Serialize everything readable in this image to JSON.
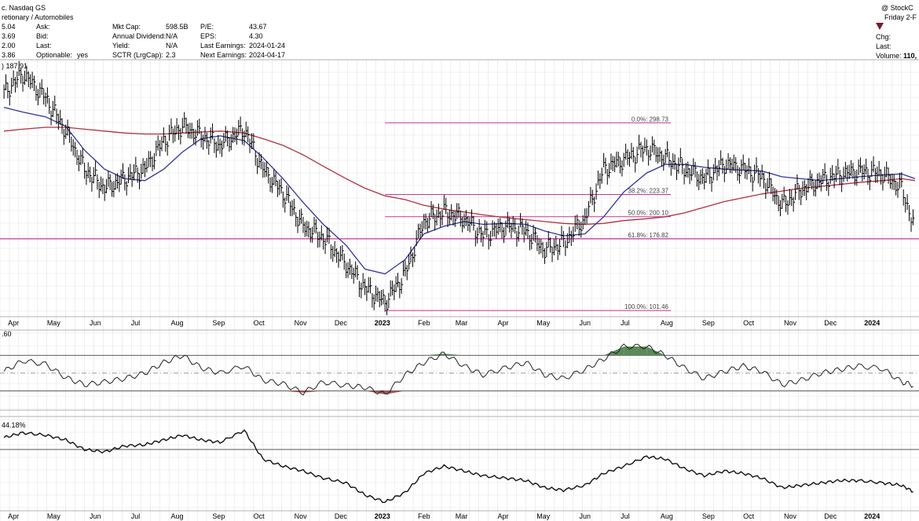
{
  "header": {
    "exchange": "c. Nasdaq GS",
    "sector": "retionary / Automobiles",
    "brand": "@ StockC",
    "date_label": "Friday 2-F",
    "quote_rows": [
      {
        "val": "5.04",
        "label": "Ask:",
        "extra": ""
      },
      {
        "val": "3.69",
        "label": "Bid:",
        "extra": ""
      },
      {
        "val": "2.00",
        "label": "Last:",
        "extra": ""
      },
      {
        "val": "3.86",
        "label": "Optionable:",
        "extra": "yes"
      }
    ],
    "fundamentals_a": [
      {
        "label": "Mkt Cap:",
        "value": "598.5B"
      },
      {
        "label": "Annual Dividend:",
        "value": "N/A"
      },
      {
        "label": "Yield:",
        "value": "N/A"
      },
      {
        "label": "SCTR (LrgCap):",
        "value": "2.3"
      }
    ],
    "fundamentals_b": [
      {
        "label": "P/E:",
        "value": "43.67"
      },
      {
        "label": "EPS:",
        "value": "4.30"
      },
      {
        "label": "Last Earnings:",
        "value": "2024-01-24"
      },
      {
        "label": "Next Earnings:",
        "value": "2024-04-17"
      }
    ],
    "right_labels": [
      "Chg:",
      "Last:"
    ],
    "volume_label": "Volume:",
    "volume_value": "110,",
    "price_legend": ") 187.91",
    "rsi_legend": ".60",
    "perf_legend": "44.18%"
  },
  "chart_data": [
    {
      "type": "line",
      "panel": "price",
      "description_free": true,
      "x": [
        "2022-03-25",
        "2022-04-08",
        "2022-04-25",
        "2022-05-10",
        "2022-05-24",
        "2022-06-08",
        "2022-06-23",
        "2022-07-08",
        "2022-07-22",
        "2022-08-05",
        "2022-08-19",
        "2022-09-02",
        "2022-09-20",
        "2022-10-04",
        "2022-10-19",
        "2022-11-03",
        "2022-11-18",
        "2022-12-05",
        "2022-12-19",
        "2023-01-03",
        "2023-01-18",
        "2023-02-01",
        "2023-02-16",
        "2023-03-03",
        "2023-03-17",
        "2023-04-03",
        "2023-04-18",
        "2023-05-02",
        "2023-05-16",
        "2023-06-01",
        "2023-06-15",
        "2023-06-30",
        "2023-07-17",
        "2023-07-31",
        "2023-08-14",
        "2023-08-29",
        "2023-09-13",
        "2023-09-27",
        "2023-10-11",
        "2023-10-26",
        "2023-11-09",
        "2023-11-24",
        "2023-12-08",
        "2023-12-22",
        "2024-01-09",
        "2024-01-23",
        "2024-02-02"
      ],
      "close": [
        330,
        350,
        325,
        290,
        250,
        230,
        240,
        250,
        280,
        295,
        285,
        275,
        292,
        250,
        225,
        190,
        178,
        150,
        125,
        110,
        140,
        195,
        205,
        198,
        180,
        190,
        185,
        165,
        172,
        198,
        250,
        260,
        272,
        262,
        250,
        240,
        255,
        250,
        242,
        212,
        228,
        238,
        244,
        248,
        245,
        230,
        188
      ],
      "ma_fast": [
        315,
        310,
        305,
        295,
        270,
        250,
        240,
        238,
        250,
        268,
        282,
        285,
        280,
        262,
        240,
        215,
        192,
        170,
        145,
        140,
        155,
        182,
        190,
        195,
        192,
        193,
        192,
        185,
        180,
        182,
        200,
        226,
        246,
        255,
        255,
        252,
        250,
        249,
        248,
        242,
        240,
        238,
        240,
        242,
        244,
        245,
        240
      ],
      "ma_slow": [
        290,
        292,
        294,
        294,
        292,
        290,
        288,
        287,
        287,
        288,
        289,
        290,
        288,
        282,
        275,
        265,
        253,
        240,
        230,
        222,
        218,
        212,
        208,
        205,
        202,
        199,
        197,
        195,
        193,
        192,
        193,
        196,
        198,
        200,
        204,
        210,
        216,
        220,
        224,
        227,
        230,
        232,
        234,
        236,
        238,
        240,
        238
      ],
      "hline": 176.82,
      "fib_levels": [
        {
          "label": "0.0%: 298.73",
          "value": 298.73
        },
        {
          "label": "38.2%: 223.37",
          "value": 223.37
        },
        {
          "label": "50.0%: 200.10",
          "value": 200.1
        },
        {
          "label": "61.8%: 176.82",
          "value": 176.82
        },
        {
          "label": "100.0%: 101.46",
          "value": 101.46
        }
      ],
      "fib_start": "2023-01-03",
      "ylim": [
        95,
        365
      ]
    },
    {
      "type": "line",
      "panel": "rsi",
      "x": [
        "2022-03-25",
        "2022-04-08",
        "2022-04-25",
        "2022-05-10",
        "2022-05-24",
        "2022-06-08",
        "2022-06-23",
        "2022-07-08",
        "2022-07-22",
        "2022-08-05",
        "2022-08-19",
        "2022-09-02",
        "2022-09-20",
        "2022-10-04",
        "2022-10-19",
        "2022-11-03",
        "2022-11-18",
        "2022-12-05",
        "2022-12-19",
        "2023-01-03",
        "2023-01-18",
        "2023-02-01",
        "2023-02-16",
        "2023-03-03",
        "2023-03-17",
        "2023-04-03",
        "2023-04-18",
        "2023-05-02",
        "2023-05-16",
        "2023-06-01",
        "2023-06-15",
        "2023-06-30",
        "2023-07-17",
        "2023-07-31",
        "2023-08-14",
        "2023-08-29",
        "2023-09-13",
        "2023-09-27",
        "2023-10-11",
        "2023-10-26",
        "2023-11-09",
        "2023-11-24",
        "2023-12-08",
        "2023-12-22",
        "2024-01-09",
        "2024-01-23",
        "2024-02-02"
      ],
      "values": [
        52,
        64,
        60,
        45,
        37,
        40,
        44,
        50,
        62,
        70,
        56,
        50,
        58,
        42,
        38,
        28,
        40,
        36,
        34,
        26,
        48,
        62,
        72,
        58,
        48,
        56,
        62,
        48,
        44,
        54,
        66,
        80,
        80,
        70,
        56,
        44,
        52,
        58,
        52,
        37,
        42,
        50,
        54,
        58,
        55,
        40,
        36
      ],
      "overbought": 70,
      "oversold": 30,
      "midline": 50,
      "ylim": [
        10,
        95
      ]
    },
    {
      "type": "line",
      "panel": "performance",
      "x": [
        "2022-03-25",
        "2022-04-08",
        "2022-04-25",
        "2022-05-10",
        "2022-05-24",
        "2022-06-08",
        "2022-06-23",
        "2022-07-08",
        "2022-07-22",
        "2022-08-05",
        "2022-08-19",
        "2022-09-02",
        "2022-09-20",
        "2022-10-04",
        "2022-10-19",
        "2022-11-03",
        "2022-11-18",
        "2022-12-05",
        "2022-12-19",
        "2023-01-03",
        "2023-01-18",
        "2023-02-01",
        "2023-02-16",
        "2023-03-03",
        "2023-03-17",
        "2023-04-03",
        "2023-04-18",
        "2023-05-02",
        "2023-05-16",
        "2023-06-01",
        "2023-06-15",
        "2023-06-30",
        "2023-07-17",
        "2023-07-31",
        "2023-08-14",
        "2023-08-29",
        "2023-09-13",
        "2023-09-27",
        "2023-10-11",
        "2023-10-26",
        "2023-11-09",
        "2023-11-24",
        "2023-12-08",
        "2023-12-22",
        "2024-01-09",
        "2024-01-23",
        "2024-02-02"
      ],
      "values": [
        40,
        44,
        42,
        38,
        30,
        28,
        33,
        34,
        38,
        42,
        38,
        36,
        46,
        22,
        16,
        12,
        6,
        2,
        -8,
        -14,
        -6,
        10,
        16,
        12,
        8,
        6,
        4,
        -2,
        -4,
        0,
        10,
        16,
        24,
        22,
        14,
        8,
        12,
        10,
        6,
        -2,
        0,
        2,
        4,
        4,
        2,
        0,
        -6
      ],
      "hline": 30,
      "ylim": [
        -20,
        55
      ]
    }
  ],
  "x_axis": {
    "months": [
      {
        "label": "Apr",
        "date": "2022-04-01",
        "year": false
      },
      {
        "label": "May",
        "date": "2022-05-01",
        "year": false
      },
      {
        "label": "Jun",
        "date": "2022-06-01",
        "year": false
      },
      {
        "label": "Jul",
        "date": "2022-07-01",
        "year": false
      },
      {
        "label": "Aug",
        "date": "2022-08-01",
        "year": false
      },
      {
        "label": "Sep",
        "date": "2022-09-01",
        "year": false
      },
      {
        "label": "Oct",
        "date": "2022-10-01",
        "year": false
      },
      {
        "label": "Nov",
        "date": "2022-11-01",
        "year": false
      },
      {
        "label": "Dec",
        "date": "2022-12-01",
        "year": false
      },
      {
        "label": "2023",
        "date": "2023-01-01",
        "year": true
      },
      {
        "label": "Feb",
        "date": "2023-02-01",
        "year": false
      },
      {
        "label": "Mar",
        "date": "2023-03-01",
        "year": false
      },
      {
        "label": "Apr",
        "date": "2023-04-01",
        "year": false
      },
      {
        "label": "May",
        "date": "2023-05-01",
        "year": false
      },
      {
        "label": "Jun",
        "date": "2023-06-01",
        "year": false
      },
      {
        "label": "Jul",
        "date": "2023-07-01",
        "year": false
      },
      {
        "label": "Aug",
        "date": "2023-08-01",
        "year": false
      },
      {
        "label": "Sep",
        "date": "2023-09-01",
        "year": false
      },
      {
        "label": "Oct",
        "date": "2023-10-01",
        "year": false
      },
      {
        "label": "Nov",
        "date": "2023-11-01",
        "year": false
      },
      {
        "label": "Dec",
        "date": "2023-12-01",
        "year": false
      },
      {
        "label": "2024",
        "date": "2024-01-01",
        "year": true
      }
    ]
  },
  "colors": {
    "price": "#000000",
    "ma_fast": "#333399",
    "ma_slow": "#b03040",
    "fib": "#cc3399",
    "rsi_over": "#5a8a5a",
    "rsi_under": "#a05a50",
    "grid": "#e3e3e3",
    "down_marker": "#7a1a2a"
  }
}
